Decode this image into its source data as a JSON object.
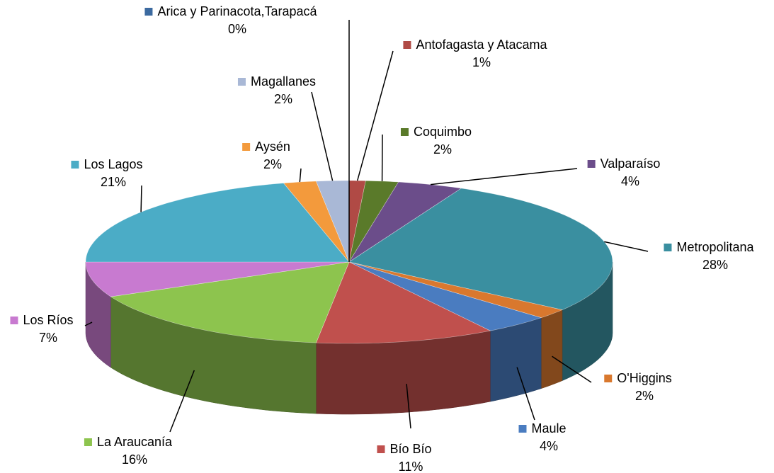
{
  "chart_data": {
    "type": "pie",
    "categories": [
      "Arica y Parinacota,Tarapacá",
      "Antofagasta y Atacama",
      "Coquimbo",
      "Valparaíso",
      "Metropolitana",
      "O'Higgins",
      "Maule",
      "Bío Bío",
      "La Araucanía",
      "Los Ríos",
      "Los Lagos",
      "Aysén",
      "Magallanes"
    ],
    "values": [
      0,
      1,
      2,
      4,
      28,
      2,
      4,
      11,
      16,
      7,
      21,
      2,
      2
    ],
    "value_labels": [
      "0%",
      "1%",
      "2%",
      "4%",
      "28%",
      "2%",
      "4%",
      "11%",
      "16%",
      "7%",
      "21%",
      "2%",
      "2%"
    ],
    "colors": [
      "#3c6aa0",
      "#b04a45",
      "#5a7a2a",
      "#6b4d8a",
      "#3a8fa0",
      "#d9782e",
      "#4a7cc0",
      "#c0504d",
      "#8dc44e",
      "#c87ad0",
      "#4bacc6",
      "#f39a3c",
      "#a9b8d6"
    ]
  }
}
